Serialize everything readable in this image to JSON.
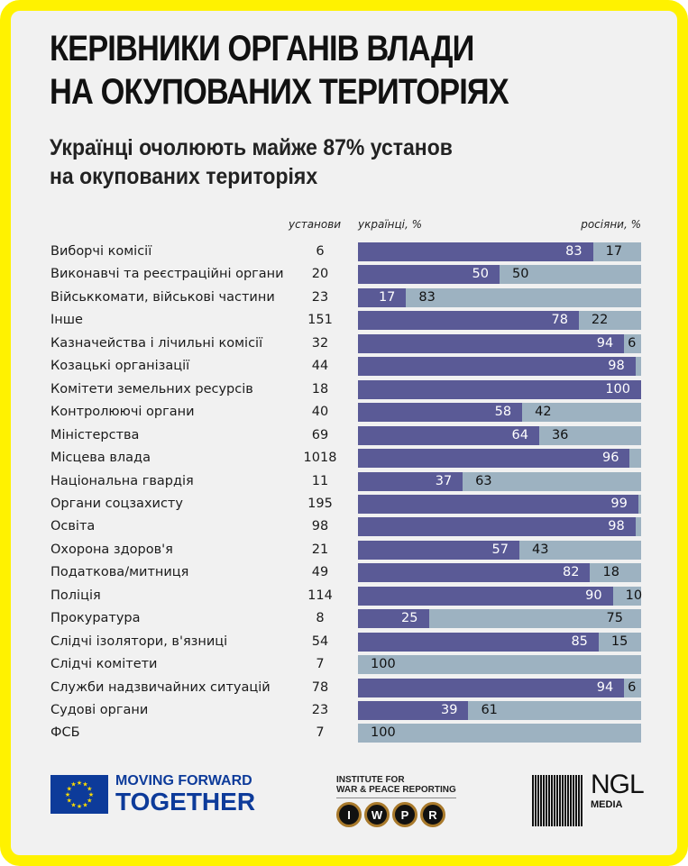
{
  "title_line1": "КЕРІВНИКИ ОРГАНІВ ВЛАДИ",
  "title_line2": "НА ОКУПОВАНИХ ТЕРИТОРІЯХ",
  "subtitle_line1": "Українці очолюють майже 87% установ",
  "subtitle_line2": "на окупованих територіях",
  "colors": {
    "frame": "#fff200",
    "background": "#f1f1f1",
    "ukrainians": "#5a5a96",
    "russians": "#9db2c1"
  },
  "chart_data": {
    "type": "bar",
    "stacked": true,
    "orientation": "horizontal",
    "title": "КЕРІВНИКИ ОРГАНІВ ВЛАДИ НА ОКУПОВАНИХ ТЕРИТОРІЯХ",
    "subtitle": "Українці очолюють майже 87% установ на окупованих територіях",
    "count_header": "установи",
    "xlim": [
      0,
      100
    ],
    "categories": [
      "Виборчі комісії",
      "Виконавчі та реєстраційні органи",
      "Військкомати, військові частини",
      "Інше",
      "Казначейства і лічильні комісії",
      "Козацькі організації",
      "Комітети земельних ресурсів",
      "Контролюючі органи",
      "Міністерства",
      "Місцева влада",
      "Національна гвардія",
      "Органи соцзахисту",
      "Освіта",
      "Охорона здоров'я",
      "Податкова/митниця",
      "Поліція",
      "Прокуратура",
      "Слідчі ізолятори, в'язниці",
      "Слідчі комітети",
      "Служби надзвичайних ситуацій",
      "Судові органи",
      "ФСБ"
    ],
    "counts": [
      "6",
      "20",
      "23",
      "151",
      "32",
      "44",
      "18",
      "40",
      "69",
      "1018",
      "11",
      "195",
      "98",
      "21",
      "49",
      "114",
      "8",
      "54",
      "7",
      "78",
      "23",
      "7"
    ],
    "series": [
      {
        "name": "українці, %",
        "values": [
          83,
          50,
          17,
          78,
          94,
          98,
          100,
          58,
          64,
          96,
          37,
          99,
          98,
          57,
          82,
          90,
          25,
          85,
          0,
          94,
          39,
          0
        ]
      },
      {
        "name": "росіяни, %",
        "values": [
          17,
          50,
          83,
          22,
          6,
          2,
          0,
          42,
          36,
          4,
          63,
          1,
          2,
          43,
          18,
          10,
          75,
          15,
          100,
          6,
          61,
          100
        ]
      }
    ],
    "ua_labels": [
      "83",
      "50",
      "17",
      "78",
      "94",
      "98",
      "100",
      "58",
      "64",
      "96",
      "37",
      "99",
      "98",
      "57",
      "82",
      "90",
      "25",
      "85",
      "",
      "94",
      "39",
      ""
    ],
    "ru_labels": [
      "17",
      "50",
      "83",
      "22",
      "6",
      "",
      "",
      "42",
      "36",
      "",
      "63",
      "",
      "",
      "43",
      "18",
      "10",
      "75",
      "15",
      "100",
      "6",
      "61",
      "100"
    ],
    "legend": {
      "left": "українці, %",
      "right": "росіяни, %"
    }
  },
  "logos": {
    "eu_line1": "MOVING FORWARD",
    "eu_line2": "TOGETHER",
    "iwpr_line1": "INSTITUTE FOR",
    "iwpr_line2": "WAR & PEACE REPORTING",
    "iwpr_keys": [
      "I",
      "W",
      "P",
      "R"
    ],
    "ngl_line1": "NGL",
    "ngl_line2": "MEDIA"
  }
}
